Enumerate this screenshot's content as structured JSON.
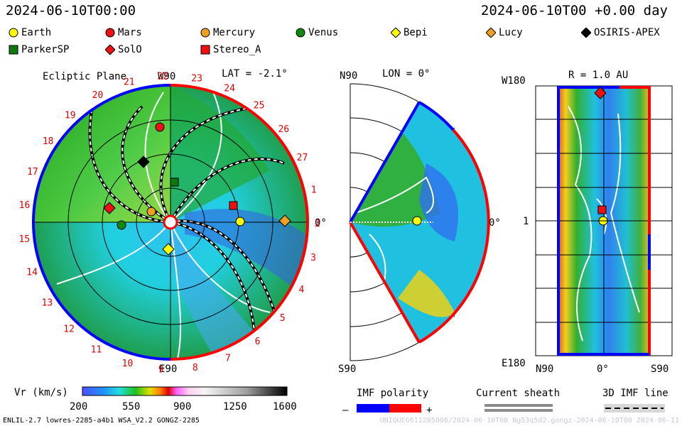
{
  "header": {
    "left_datetime": "2024-06-10T00:00",
    "right_datetime": "2024-06-10T00 +0.00 day"
  },
  "legend": [
    {
      "label": "Earth",
      "shape": "circle",
      "color": "#ffff00"
    },
    {
      "label": "Mars",
      "shape": "circle",
      "color": "#ee1111"
    },
    {
      "label": "Mercury",
      "shape": "circle",
      "color": "#f0a020"
    },
    {
      "label": "Venus",
      "shape": "circle",
      "color": "#118811"
    },
    {
      "label": "Bepi",
      "shape": "diamond",
      "color": "#ffff00"
    },
    {
      "label": "Lucy",
      "shape": "diamond",
      "color": "#f0a020"
    },
    {
      "label": "OSIRIS-APEX",
      "shape": "diamond",
      "color": "#000000"
    },
    {
      "label": "ParkerSP",
      "shape": "square",
      "color": "#117711"
    },
    {
      "label": "SolO",
      "shape": "diamond",
      "color": "#ee1111"
    },
    {
      "label": "Stereo_A",
      "shape": "square",
      "color": "#ee1111"
    }
  ],
  "ecliptic": {
    "title": "Ecliptic Plane",
    "lat_label": "LAT = -2.1°",
    "w90": "W90",
    "e90": "E90",
    "zero": "0°",
    "carrington": [
      "1",
      "2",
      "3",
      "4",
      "5",
      "6",
      "7",
      "8",
      "9",
      "10",
      "11",
      "12",
      "13",
      "14",
      "15",
      "16",
      "17",
      "18",
      "19",
      "20",
      "21",
      "22",
      "23",
      "24",
      "25",
      "26",
      "27"
    ]
  },
  "meridional": {
    "lon_label": "LON = 0°",
    "n90": "N90",
    "s90": "S90",
    "zero": "0°"
  },
  "radial": {
    "r_label": "R = 1.0 AU",
    "w180": "W180",
    "e180": "E180",
    "one": "1",
    "n90": "N90",
    "zero": "0°",
    "s90": "S90"
  },
  "colorbar": {
    "label": "Vr (km/s)",
    "ticks": [
      "200",
      "550",
      "900",
      "1250",
      "1600"
    ]
  },
  "imf": {
    "title": "IMF polarity",
    "minus": "–",
    "plus": "+"
  },
  "current_sheath": {
    "title": "Current sheath"
  },
  "imf_line": {
    "title": "3D IMF line"
  },
  "footer": {
    "left": "ENLIL-2.7 lowres-2285-a4b1 WSA_V2.2 GONGZ-2285",
    "right": "UNIQUE6611285006/2024-06-10T00 Ng53q5d2.gongz-2024-06-10T00 2024-06-11"
  },
  "colors": {
    "polarity_negative": "#0000ff",
    "polarity_positive": "#ff0000"
  }
}
